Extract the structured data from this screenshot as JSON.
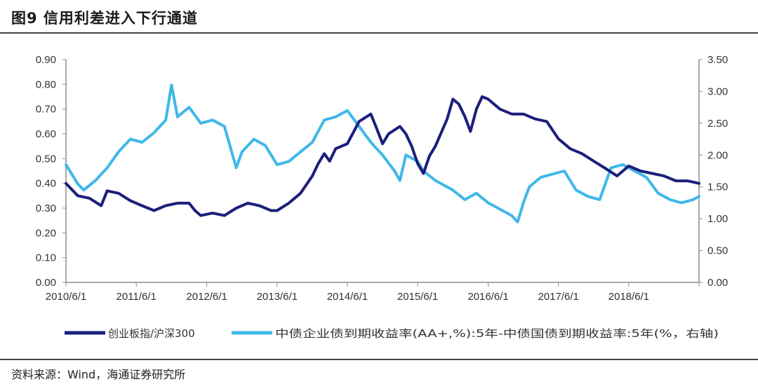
{
  "header": {
    "title": "图9  信用利差进入下行通道"
  },
  "footer": {
    "source": "资料来源：Wind，海通证券研究所"
  },
  "colors": {
    "series1": "#1b1f7a",
    "series2": "#3fb8e8",
    "axis": "#8c8c8c"
  },
  "chart_data": {
    "type": "line",
    "title": "",
    "x_ticks": [
      "2010/6/1",
      "2011/6/1",
      "2012/6/1",
      "2013/6/1",
      "2014/6/1",
      "2015/6/1",
      "2016/6/1",
      "2017/6/1",
      "2018/6/1"
    ],
    "x_range": [
      "2010/6/1",
      "2019/6/1"
    ],
    "ylim_left": [
      0,
      0.9
    ],
    "ylim_right": [
      0,
      3.5
    ],
    "yticks_left": [
      "0.00",
      "0.10",
      "0.20",
      "0.30",
      "0.40",
      "0.50",
      "0.60",
      "0.70",
      "0.80",
      "0.90"
    ],
    "yticks_right": [
      "0.00",
      "0.50",
      "1.00",
      "1.50",
      "2.00",
      "2.50",
      "3.00",
      "3.50"
    ],
    "grid": false,
    "legend_position": "bottom",
    "series": [
      {
        "name": "创业板指/沪深300",
        "axis": "left",
        "points": [
          [
            "2010/6/1",
            0.4
          ],
          [
            "2010/8/1",
            0.35
          ],
          [
            "2010/10/1",
            0.34
          ],
          [
            "2010/12/1",
            0.31
          ],
          [
            "2011/1/1",
            0.37
          ],
          [
            "2011/3/1",
            0.36
          ],
          [
            "2011/5/1",
            0.33
          ],
          [
            "2011/7/1",
            0.31
          ],
          [
            "2011/9/1",
            0.29
          ],
          [
            "2011/11/1",
            0.31
          ],
          [
            "2012/1/1",
            0.32
          ],
          [
            "2012/3/1",
            0.32
          ],
          [
            "2012/4/1",
            0.29
          ],
          [
            "2012/5/1",
            0.27
          ],
          [
            "2012/7/1",
            0.28
          ],
          [
            "2012/9/1",
            0.27
          ],
          [
            "2012/11/1",
            0.3
          ],
          [
            "2013/1/1",
            0.32
          ],
          [
            "2013/3/1",
            0.31
          ],
          [
            "2013/5/1",
            0.29
          ],
          [
            "2013/6/1",
            0.29
          ],
          [
            "2013/8/1",
            0.32
          ],
          [
            "2013/10/1",
            0.36
          ],
          [
            "2013/12/1",
            0.43
          ],
          [
            "2014/1/1",
            0.48
          ],
          [
            "2014/2/1",
            0.52
          ],
          [
            "2014/3/1",
            0.49
          ],
          [
            "2014/4/1",
            0.54
          ],
          [
            "2014/6/1",
            0.56
          ],
          [
            "2014/8/1",
            0.65
          ],
          [
            "2014/10/1",
            0.68
          ],
          [
            "2014/11/1",
            0.62
          ],
          [
            "2014/12/1",
            0.56
          ],
          [
            "2015/1/1",
            0.6
          ],
          [
            "2015/3/1",
            0.63
          ],
          [
            "2015/4/1",
            0.6
          ],
          [
            "2015/5/1",
            0.55
          ],
          [
            "2015/6/1",
            0.48
          ],
          [
            "2015/7/1",
            0.44
          ],
          [
            "2015/8/1",
            0.51
          ],
          [
            "2015/9/1",
            0.55
          ],
          [
            "2015/11/1",
            0.66
          ],
          [
            "2015/12/1",
            0.74
          ],
          [
            "2016/1/1",
            0.72
          ],
          [
            "2016/2/1",
            0.67
          ],
          [
            "2016/3/1",
            0.61
          ],
          [
            "2016/4/1",
            0.7
          ],
          [
            "2016/5/1",
            0.75
          ],
          [
            "2016/6/1",
            0.74
          ],
          [
            "2016/8/1",
            0.7
          ],
          [
            "2016/10/1",
            0.68
          ],
          [
            "2016/12/1",
            0.68
          ],
          [
            "2017/2/1",
            0.66
          ],
          [
            "2017/4/1",
            0.65
          ],
          [
            "2017/6/1",
            0.58
          ],
          [
            "2017/8/1",
            0.54
          ],
          [
            "2017/10/1",
            0.52
          ],
          [
            "2017/12/1",
            0.49
          ],
          [
            "2018/2/1",
            0.46
          ],
          [
            "2018/4/1",
            0.43
          ],
          [
            "2018/6/1",
            0.47
          ],
          [
            "2018/8/1",
            0.45
          ],
          [
            "2018/10/1",
            0.44
          ],
          [
            "2018/12/1",
            0.43
          ],
          [
            "2019/2/1",
            0.41
          ],
          [
            "2019/4/1",
            0.41
          ],
          [
            "2019/6/1",
            0.4
          ]
        ]
      },
      {
        "name": "中债企业债到期收益率(AA+,%):5年-中债国债到期收益率:5年(%，右轴)",
        "axis": "right",
        "points": [
          [
            "2010/6/1",
            1.85
          ],
          [
            "2010/8/1",
            1.55
          ],
          [
            "2010/9/1",
            1.45
          ],
          [
            "2010/11/1",
            1.6
          ],
          [
            "2011/1/1",
            1.8
          ],
          [
            "2011/3/1",
            2.05
          ],
          [
            "2011/5/1",
            2.25
          ],
          [
            "2011/7/1",
            2.2
          ],
          [
            "2011/9/1",
            2.35
          ],
          [
            "2011/11/1",
            2.55
          ],
          [
            "2011/12/1",
            3.1
          ],
          [
            "2012/1/1",
            2.6
          ],
          [
            "2012/3/1",
            2.75
          ],
          [
            "2012/5/1",
            2.5
          ],
          [
            "2012/7/1",
            2.55
          ],
          [
            "2012/9/1",
            2.45
          ],
          [
            "2012/11/1",
            1.8
          ],
          [
            "2012/12/1",
            2.05
          ],
          [
            "2013/2/1",
            2.25
          ],
          [
            "2013/4/1",
            2.15
          ],
          [
            "2013/6/1",
            1.85
          ],
          [
            "2013/8/1",
            1.9
          ],
          [
            "2013/10/1",
            2.05
          ],
          [
            "2013/12/1",
            2.2
          ],
          [
            "2014/2/1",
            2.55
          ],
          [
            "2014/4/1",
            2.6
          ],
          [
            "2014/6/1",
            2.7
          ],
          [
            "2014/8/1",
            2.45
          ],
          [
            "2014/10/1",
            2.2
          ],
          [
            "2014/12/1",
            2.0
          ],
          [
            "2015/2/1",
            1.75
          ],
          [
            "2015/3/1",
            1.6
          ],
          [
            "2015/4/1",
            2.0
          ],
          [
            "2015/6/1",
            1.9
          ],
          [
            "2015/7/1",
            1.75
          ],
          [
            "2015/9/1",
            1.6
          ],
          [
            "2015/11/1",
            1.5
          ],
          [
            "2015/12/1",
            1.45
          ],
          [
            "2016/2/1",
            1.3
          ],
          [
            "2016/4/1",
            1.4
          ],
          [
            "2016/6/1",
            1.25
          ],
          [
            "2016/8/1",
            1.15
          ],
          [
            "2016/10/1",
            1.05
          ],
          [
            "2016/11/1",
            0.95
          ],
          [
            "2016/12/1",
            1.25
          ],
          [
            "2017/1/1",
            1.5
          ],
          [
            "2017/3/1",
            1.65
          ],
          [
            "2017/5/1",
            1.7
          ],
          [
            "2017/7/1",
            1.75
          ],
          [
            "2017/9/1",
            1.45
          ],
          [
            "2017/11/1",
            1.35
          ],
          [
            "2018/1/1",
            1.3
          ],
          [
            "2018/3/1",
            1.8
          ],
          [
            "2018/5/1",
            1.85
          ],
          [
            "2018/7/1",
            1.75
          ],
          [
            "2018/9/1",
            1.65
          ],
          [
            "2018/11/1",
            1.4
          ],
          [
            "2019/1/1",
            1.3
          ],
          [
            "2019/3/1",
            1.25
          ],
          [
            "2019/5/1",
            1.3
          ],
          [
            "2019/6/1",
            1.35
          ]
        ]
      }
    ]
  }
}
